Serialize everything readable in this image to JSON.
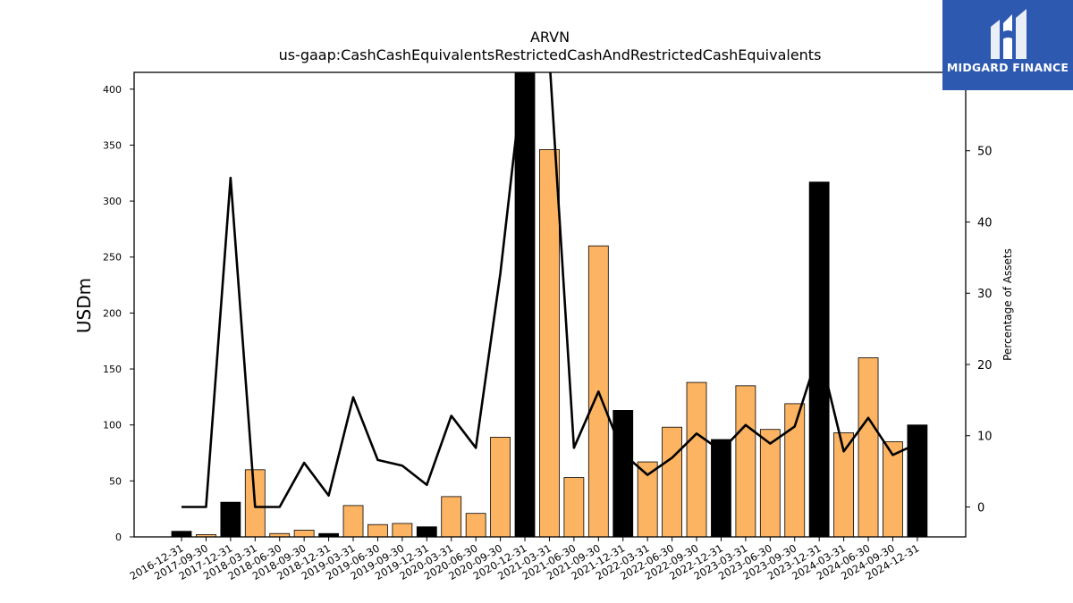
{
  "chart_data": {
    "type": "bar",
    "title": "ARVN",
    "subtitle": "us-gaap:CashCashEquivalentsRestrictedCashAndRestrictedCashEquivalents",
    "ylabel": "USDm",
    "ylabel_right": "Percentage of Assets",
    "ylim": [
      0,
      415
    ],
    "ylim_right": [
      -4.2,
      61
    ],
    "yticks": [
      0,
      50,
      100,
      150,
      200,
      250,
      300,
      350,
      400
    ],
    "yticks_right": [
      0,
      10,
      20,
      30,
      40,
      50
    ],
    "grid": false,
    "legend": "none",
    "categories": [
      "2016-12-31",
      "2017-09-30",
      "2017-12-31",
      "2018-03-31",
      "2018-06-30",
      "2018-09-30",
      "2018-12-31",
      "2019-03-31",
      "2019-06-30",
      "2019-09-30",
      "2019-12-31",
      "2020-03-31",
      "2020-06-30",
      "2020-09-30",
      "2020-12-31",
      "2021-03-31",
      "2021-06-30",
      "2021-09-30",
      "2021-12-31",
      "2022-03-31",
      "2022-06-30",
      "2022-09-30",
      "2022-12-31",
      "2023-03-31",
      "2023-06-30",
      "2023-09-30",
      "2023-12-31",
      "2024-03-31",
      "2024-06-30",
      "2024-09-30",
      "2024-12-31"
    ],
    "series": [
      {
        "type": "bar",
        "values": [
          5,
          2,
          31,
          60,
          3,
          6,
          3,
          28,
          11,
          12,
          9,
          36,
          21,
          89,
          420,
          346,
          53,
          260,
          113,
          67,
          98,
          138,
          87,
          135,
          96,
          119,
          317,
          93,
          160,
          85,
          100
        ],
        "annual": [
          true,
          false,
          true,
          false,
          false,
          false,
          true,
          false,
          false,
          false,
          true,
          false,
          false,
          false,
          true,
          false,
          false,
          false,
          true,
          false,
          false,
          false,
          true,
          false,
          false,
          false,
          true,
          false,
          false,
          false,
          true
        ]
      },
      {
        "type": "line",
        "axis": "right",
        "values": [
          0,
          0,
          46.2,
          0,
          0,
          6.2,
          1.6,
          15.4,
          6.6,
          5.8,
          3.1,
          12.8,
          8.3,
          32.8,
          63,
          63,
          8.3,
          16.2,
          7.5,
          4.5,
          6.9,
          10.3,
          7.9,
          11.5,
          8.9,
          11.3,
          22,
          7.8,
          12.5,
          7.3,
          8.9
        ]
      }
    ],
    "colors": {
      "annual_bar": "#000000",
      "quarter_bar": "#fdb462",
      "line": "#000000"
    }
  },
  "logo": {
    "text": "MIDGARD FINANCE",
    "background": "#2d59b0"
  }
}
